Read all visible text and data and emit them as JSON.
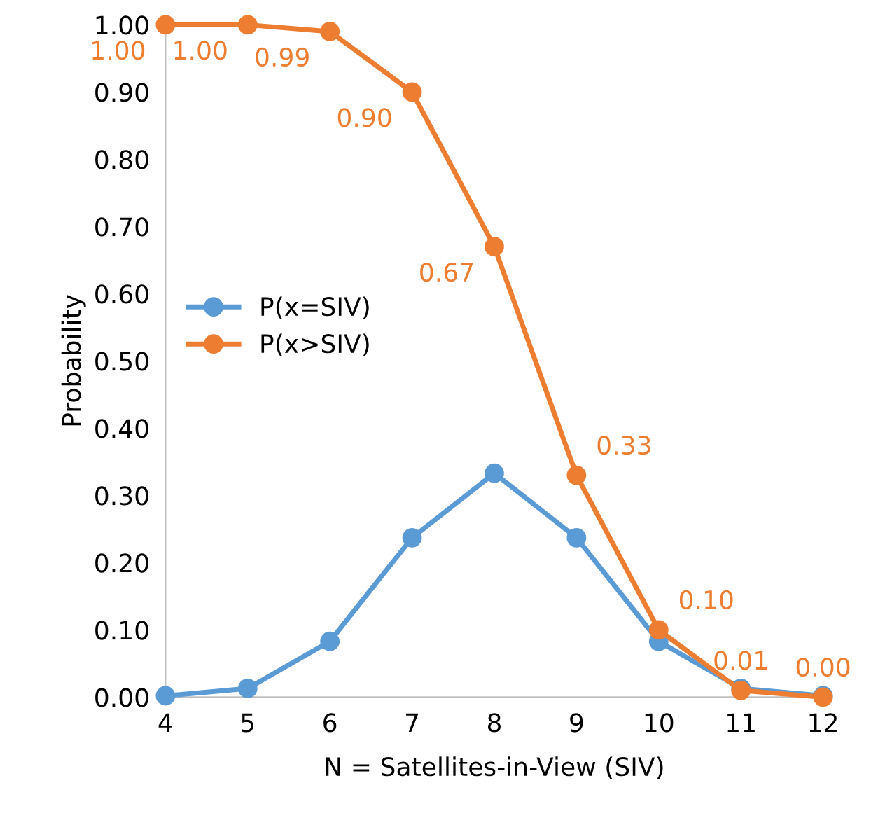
{
  "chart_data": {
    "type": "line",
    "xlabel": "N = Satellites-in-View (SIV)",
    "ylabel": "Probability",
    "x": [
      4,
      5,
      6,
      7,
      8,
      9,
      10,
      11,
      12
    ],
    "series": [
      {
        "name": "P(x=SIV)",
        "color": "#5b9bd5",
        "values": [
          0.002,
          0.013,
          0.083,
          0.237,
          0.333,
          0.237,
          0.083,
          0.013,
          0.002
        ]
      },
      {
        "name": "P(x>SIV)",
        "color": "#ed7d31",
        "values": [
          1.0,
          1.0,
          0.99,
          0.9,
          0.67,
          0.33,
          0.1,
          0.01,
          0.0
        ],
        "value_labels": [
          "1.00",
          "1.00",
          "0.99",
          "0.90",
          "0.67",
          "0.33",
          "0.10",
          "0.01",
          "0.00"
        ]
      }
    ],
    "xlim": [
      4,
      12
    ],
    "xticks": [
      4,
      5,
      6,
      7,
      8,
      9,
      10,
      11,
      12
    ],
    "ylim": [
      0,
      1
    ],
    "yticks": [
      {
        "value": 0,
        "label": "0.00"
      },
      {
        "value": 0.1,
        "label": "0.10"
      },
      {
        "value": 0.2,
        "label": "0.20"
      },
      {
        "value": 0.3,
        "label": "0.30"
      },
      {
        "value": 0.4,
        "label": "0.40"
      },
      {
        "value": 0.5,
        "label": "0.50"
      },
      {
        "value": 0.6,
        "label": "0.60"
      },
      {
        "value": 0.7,
        "label": "0.70"
      },
      {
        "value": 0.8,
        "label": "0.80"
      },
      {
        "value": 0.9,
        "label": "0.90"
      },
      {
        "value": 1.0,
        "label": "1.00"
      }
    ],
    "legend": "center left",
    "marker": "circle",
    "line_style": "solid",
    "grid": false
  }
}
